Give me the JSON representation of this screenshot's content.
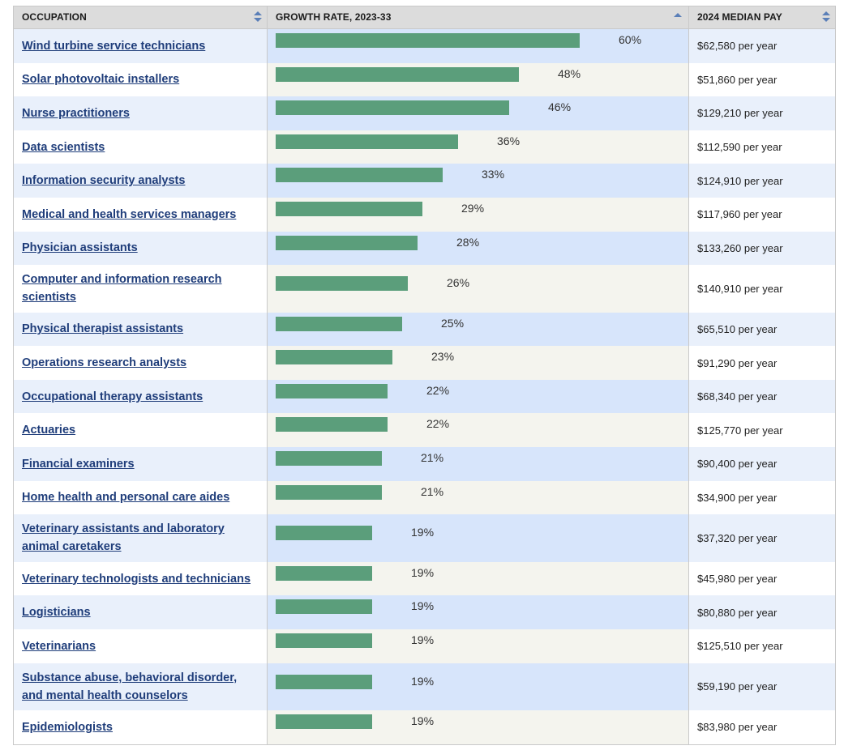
{
  "headers": {
    "occupation": "OCCUPATION",
    "growth": "GROWTH RATE, 2023-33",
    "pay": "2024 MEDIAN PAY"
  },
  "colors": {
    "bar": "#5b9e7b",
    "link": "#1f3d7a",
    "sort_icon": "#5a7fb8"
  },
  "icons": {
    "occupation_sort": "sort-both-icon",
    "growth_sort": "sort-ascending-icon",
    "pay_sort": "sort-both-icon"
  },
  "rows": [
    {
      "occupation": "Wind turbine service technicians",
      "growth_label": "60%",
      "growth": 60,
      "pay": "$62,580 per year"
    },
    {
      "occupation": "Solar photovoltaic installers",
      "growth_label": "48%",
      "growth": 48,
      "pay": "$51,860 per year"
    },
    {
      "occupation": "Nurse practitioners",
      "growth_label": "46%",
      "growth": 46,
      "pay": "$129,210 per year"
    },
    {
      "occupation": "Data scientists",
      "growth_label": "36%",
      "growth": 36,
      "pay": "$112,590 per year"
    },
    {
      "occupation": "Information security analysts",
      "growth_label": "33%",
      "growth": 33,
      "pay": "$124,910 per year"
    },
    {
      "occupation": "Medical and health services managers",
      "growth_label": "29%",
      "growth": 29,
      "pay": "$117,960 per year"
    },
    {
      "occupation": "Physician assistants",
      "growth_label": "28%",
      "growth": 28,
      "pay": "$133,260 per year"
    },
    {
      "occupation": "Computer and information research scientists",
      "growth_label": "26%",
      "growth": 26,
      "pay": "$140,910 per year"
    },
    {
      "occupation": "Physical therapist assistants",
      "growth_label": "25%",
      "growth": 25,
      "pay": "$65,510 per year"
    },
    {
      "occupation": "Operations research analysts",
      "growth_label": "23%",
      "growth": 23,
      "pay": "$91,290 per year"
    },
    {
      "occupation": "Occupational therapy assistants",
      "growth_label": "22%",
      "growth": 22,
      "pay": "$68,340 per year"
    },
    {
      "occupation": "Actuaries",
      "growth_label": "22%",
      "growth": 22,
      "pay": "$125,770 per year"
    },
    {
      "occupation": "Financial examiners",
      "growth_label": "21%",
      "growth": 21,
      "pay": "$90,400 per year"
    },
    {
      "occupation": "Home health and personal care aides",
      "growth_label": "21%",
      "growth": 21,
      "pay": "$34,900 per year"
    },
    {
      "occupation": "Veterinary assistants and laboratory animal caretakers",
      "growth_label": "19%",
      "growth": 19,
      "pay": "$37,320 per year"
    },
    {
      "occupation": "Veterinary technologists and technicians",
      "growth_label": "19%",
      "growth": 19,
      "pay": "$45,980 per year"
    },
    {
      "occupation": "Logisticians",
      "growth_label": "19%",
      "growth": 19,
      "pay": "$80,880 per year"
    },
    {
      "occupation": "Veterinarians",
      "growth_label": "19%",
      "growth": 19,
      "pay": "$125,510 per year"
    },
    {
      "occupation": "Substance abuse, behavioral disorder, and mental health counselors",
      "growth_label": "19%",
      "growth": 19,
      "pay": "$59,190 per year"
    },
    {
      "occupation": "Epidemiologists",
      "growth_label": "19%",
      "growth": 19,
      "pay": "$83,980 per year"
    }
  ]
}
